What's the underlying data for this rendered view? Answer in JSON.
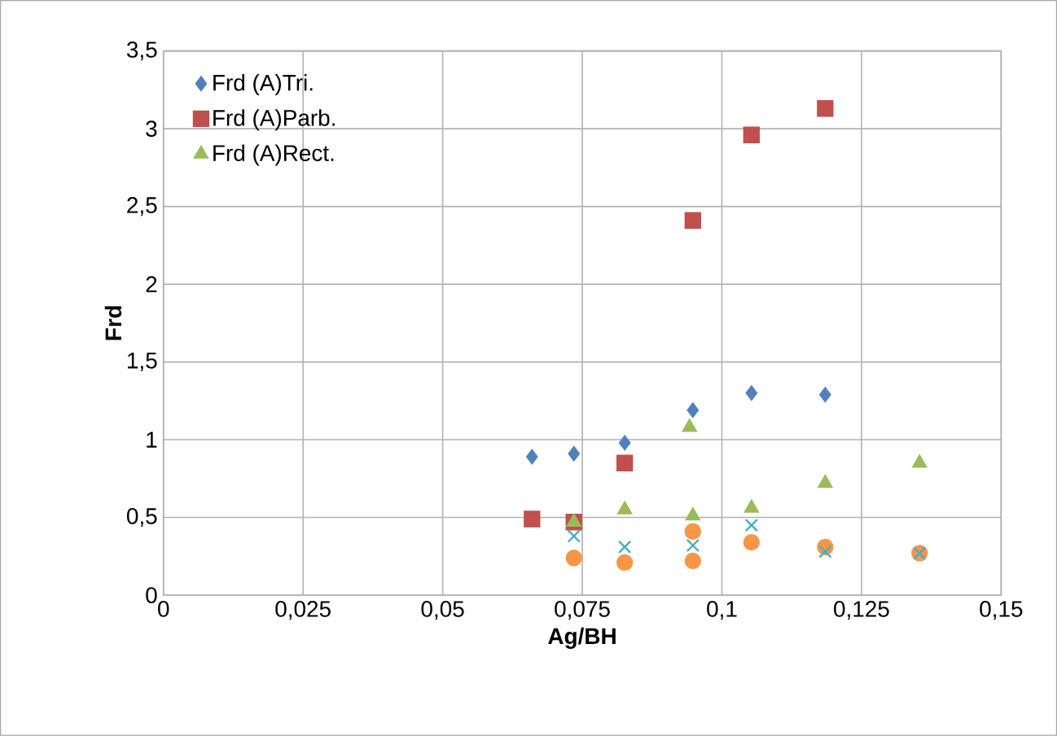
{
  "chart_data": {
    "type": "scatter",
    "xlabel": "Ag/BH",
    "ylabel": "Frd",
    "xlim": [
      0,
      0.15
    ],
    "ylim": [
      0,
      3.5
    ],
    "xticks": [
      0,
      {
        "value": 0.025,
        "label": "0,025"
      },
      {
        "value": 0.05,
        "label": "0,05"
      },
      {
        "value": 0.075,
        "label": "0,075"
      },
      {
        "value": 0.1,
        "label": "0,1"
      },
      {
        "value": 0.125,
        "label": "0,125"
      },
      {
        "value": 0.15,
        "label": "0,15"
      }
    ],
    "yticks": [
      0,
      {
        "value": 0.5,
        "label": "0,5"
      },
      1,
      {
        "value": 1.5,
        "label": "1,5"
      },
      2,
      {
        "value": 2.5,
        "label": "2,5"
      },
      3,
      {
        "value": 3.5,
        "label": "3,5"
      }
    ],
    "grid": true,
    "legend": "top left",
    "series": [
      {
        "name": "Frd (A)Tri.",
        "color": "#4f81bd",
        "marker": "diamond",
        "x": [
          0.066,
          0.0735,
          0.0826,
          0.0948,
          0.1053,
          0.1185
        ],
        "values": [
          0.89,
          0.91,
          0.98,
          1.19,
          1.3,
          1.29
        ]
      },
      {
        "name": "Frd (A)Parb.",
        "color": "#c0504d",
        "marker": "square",
        "x": [
          0.066,
          0.0735,
          0.0826,
          0.0948,
          0.1053,
          0.1185
        ],
        "values": [
          0.49,
          0.47,
          0.85,
          2.41,
          2.96,
          3.13
        ]
      },
      {
        "name": "Frd (A)Rect.",
        "color": "#9bbb59",
        "marker": "triangle",
        "x": [
          0.0735,
          0.0826,
          0.0942,
          0.0948,
          0.1053,
          0.1185,
          0.1354
        ],
        "values": [
          0.47,
          0.55,
          1.08,
          0.51,
          0.56,
          0.72,
          0.85
        ]
      },
      {
        "color": "#f79646",
        "marker": "circle",
        "x": [
          0.0735,
          0.0826,
          0.0948,
          0.0948,
          0.1053,
          0.1185,
          0.1354
        ],
        "values": [
          0.24,
          0.21,
          0.41,
          0.22,
          0.34,
          0.31,
          0.27
        ]
      },
      {
        "color": "#4bacc6",
        "marker": "cross",
        "x": [
          0.0735,
          0.0826,
          0.0948,
          0.1053,
          0.1185,
          0.1354
        ],
        "values": [
          0.38,
          0.31,
          0.32,
          0.45,
          0.28,
          0.27
        ]
      }
    ]
  }
}
